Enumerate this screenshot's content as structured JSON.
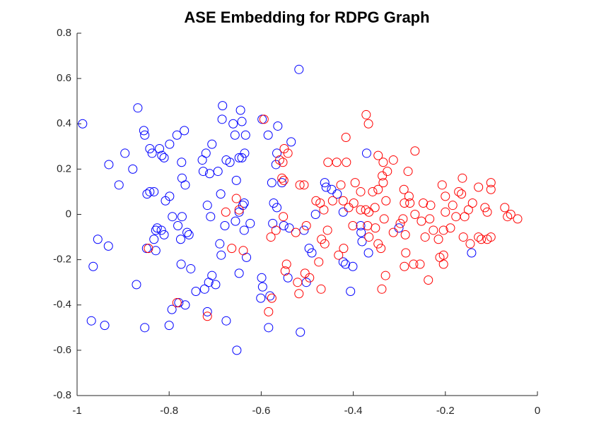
{
  "chart_data": {
    "type": "scatter",
    "title": "ASE Embedding for RDPG Graph",
    "xlim": [
      -1,
      0
    ],
    "ylim": [
      -0.8,
      0.8
    ],
    "xticks": [
      -1,
      -0.8,
      -0.6,
      -0.4,
      -0.2,
      0
    ],
    "yticks": [
      -0.8,
      -0.6,
      -0.4,
      -0.2,
      0,
      0.2,
      0.4,
      0.6,
      0.8
    ],
    "grid": false,
    "series": [
      {
        "color": "#0000ff",
        "x": [
          -0.988,
          -0.518,
          -0.868,
          -0.855,
          -0.853,
          -0.931,
          -0.896,
          -0.879,
          -0.909,
          -0.842,
          -0.837,
          -0.821,
          -0.816,
          -0.811,
          -0.799,
          -0.783,
          -0.767,
          -0.848,
          -0.842,
          -0.833,
          -0.808,
          -0.799,
          -0.773,
          -0.772,
          -0.765,
          -0.793,
          -0.781,
          -0.772,
          -0.761,
          -0.757,
          -0.826,
          -0.829,
          -0.817,
          -0.811,
          -0.833,
          -0.829,
          -0.849,
          -0.955,
          -0.932,
          -0.965,
          -0.774,
          -0.753,
          -0.775,
          -0.871,
          -0.969,
          -0.94,
          -0.853,
          -0.8,
          -0.794,
          -0.779,
          -0.765,
          -0.742,
          -0.723,
          -0.717,
          -0.714,
          -0.707,
          -0.699,
          -0.676,
          -0.653,
          -0.728,
          -0.72,
          -0.707,
          -0.726,
          -0.712,
          -0.694,
          -0.717,
          -0.71,
          -0.688,
          -0.684,
          -0.685,
          -0.676,
          -0.668,
          -0.661,
          -0.657,
          -0.645,
          -0.642,
          -0.634,
          -0.648,
          -0.642,
          -0.656,
          -0.636,
          -0.648,
          -0.637,
          -0.64,
          -0.637,
          -0.679,
          -0.69,
          -0.687,
          -0.654,
          -0.632,
          -0.648,
          -0.599,
          -0.597,
          -0.601,
          -0.581,
          -0.584,
          -0.624,
          -0.598,
          -0.585,
          -0.564,
          -0.568,
          -0.566,
          -0.577,
          -0.555,
          -0.573,
          -0.566,
          -0.575,
          -0.551,
          -0.539,
          -0.542,
          -0.535,
          -0.515,
          -0.502,
          -0.496,
          -0.49,
          -0.507,
          -0.482,
          -0.459,
          -0.462,
          -0.447,
          -0.435,
          -0.422,
          -0.422,
          -0.417,
          -0.401,
          -0.406,
          -0.371,
          -0.384,
          -0.383,
          -0.381,
          -0.367,
          -0.301,
          -0.143
        ],
        "y": [
          0.4,
          0.64,
          0.47,
          0.37,
          0.35,
          0.22,
          0.27,
          0.2,
          0.13,
          0.29,
          0.27,
          0.29,
          0.26,
          0.25,
          0.31,
          0.35,
          0.37,
          0.09,
          0.1,
          0.1,
          0.06,
          0.08,
          0.23,
          0.16,
          0.13,
          -0.01,
          -0.05,
          -0.01,
          -0.08,
          -0.09,
          -0.06,
          -0.07,
          -0.07,
          -0.09,
          -0.11,
          -0.16,
          -0.15,
          -0.11,
          -0.14,
          -0.23,
          -0.22,
          -0.24,
          -0.11,
          -0.31,
          -0.47,
          -0.49,
          -0.5,
          -0.49,
          -0.42,
          -0.39,
          -0.4,
          -0.34,
          -0.33,
          -0.43,
          -0.3,
          -0.27,
          -0.31,
          -0.47,
          -0.6,
          0.24,
          0.27,
          0.31,
          0.19,
          0.18,
          0.19,
          0.04,
          -0.01,
          0.09,
          0.48,
          0.42,
          0.24,
          0.23,
          0.4,
          0.35,
          0.46,
          0.41,
          0.35,
          0.25,
          0.25,
          -0.03,
          0.27,
          0.01,
          0.05,
          0.04,
          -0.07,
          -0.05,
          -0.13,
          -0.18,
          0.15,
          -0.19,
          -0.26,
          -0.28,
          -0.32,
          -0.37,
          -0.36,
          -0.5,
          -0.04,
          0.42,
          0.35,
          0.39,
          0.22,
          0.27,
          0.14,
          0.14,
          0.05,
          0.03,
          -0.04,
          -0.05,
          -0.06,
          -0.28,
          0.32,
          -0.52,
          -0.3,
          -0.15,
          -0.17,
          -0.07,
          0,
          0.12,
          0.14,
          0.11,
          0.09,
          0.01,
          -0.21,
          -0.22,
          -0.23,
          -0.34,
          0.27,
          -0.05,
          -0.08,
          -0.12,
          -0.17,
          -0.06,
          -0.17
        ]
      },
      {
        "color": "#ff0000",
        "x": [
          -0.594,
          -0.372,
          -0.367,
          -0.416,
          -0.55,
          -0.542,
          -0.56,
          -0.553,
          -0.455,
          -0.436,
          -0.415,
          -0.346,
          -0.335,
          -0.326,
          -0.313,
          -0.281,
          -0.266,
          -0.555,
          -0.551,
          -0.516,
          -0.507,
          -0.427,
          -0.396,
          -0.384,
          -0.358,
          -0.346,
          -0.335,
          -0.337,
          -0.29,
          -0.279,
          -0.289,
          -0.277,
          -0.248,
          -0.232,
          -0.234,
          -0.207,
          -0.2,
          -0.2,
          -0.171,
          -0.165,
          -0.163,
          -0.184,
          -0.128,
          -0.101,
          -0.101,
          -0.109,
          -0.141,
          -0.15,
          -0.114,
          -0.071,
          -0.065,
          -0.058,
          -0.043,
          -0.481,
          -0.472,
          -0.464,
          -0.445,
          -0.422,
          -0.399,
          -0.373,
          -0.384,
          -0.366,
          -0.353,
          -0.329,
          -0.333,
          -0.369,
          -0.401,
          -0.41,
          -0.352,
          -0.366,
          -0.346,
          -0.34,
          -0.313,
          -0.298,
          -0.292,
          -0.287,
          -0.266,
          -0.252,
          -0.244,
          -0.215,
          -0.226,
          -0.204,
          -0.189,
          -0.177,
          -0.158,
          -0.161,
          -0.146,
          -0.128,
          -0.109,
          -0.101,
          -0.122,
          -0.204,
          -0.212,
          -0.204,
          -0.237,
          -0.255,
          -0.269,
          -0.289,
          -0.286,
          -0.33,
          -0.338,
          -0.421,
          -0.432,
          -0.462,
          -0.475,
          -0.505,
          -0.495,
          -0.521,
          -0.518,
          -0.47,
          -0.525,
          -0.502,
          -0.456,
          -0.469,
          -0.552,
          -0.568,
          -0.579,
          -0.545,
          -0.548,
          -0.584,
          -0.577,
          -0.639,
          -0.664,
          -0.654,
          -0.783,
          -0.717,
          -0.845,
          -0.677,
          -0.648
        ],
        "y": [
          0.42,
          0.44,
          0.4,
          0.34,
          0.29,
          0.27,
          0.24,
          0.23,
          0.23,
          0.23,
          0.23,
          0.26,
          0.23,
          0.19,
          0.24,
          0.19,
          0.28,
          0.16,
          0.15,
          0.13,
          0.13,
          0.13,
          0.14,
          0.1,
          0.1,
          0.11,
          0.14,
          0.17,
          0.11,
          0.08,
          0.05,
          0.05,
          0.05,
          0.04,
          -0.02,
          0.13,
          0.08,
          0.01,
          0.1,
          0.09,
          0.16,
          0.04,
          0.12,
          0.14,
          0.11,
          0.01,
          0.05,
          0.02,
          0.03,
          0.03,
          -0.01,
          0,
          -0.02,
          0.06,
          0.05,
          0.02,
          0.06,
          0.06,
          0.05,
          0.02,
          0.02,
          0.01,
          0.03,
          0.06,
          -0.02,
          -0.05,
          -0.05,
          0.03,
          -0.06,
          -0.1,
          -0.13,
          -0.15,
          -0.08,
          -0.04,
          -0.02,
          -0.09,
          0,
          -0.03,
          -0.1,
          -0.11,
          -0.07,
          -0.07,
          -0.06,
          -0.01,
          -0.01,
          -0.1,
          -0.13,
          -0.1,
          -0.11,
          -0.1,
          -0.11,
          -0.18,
          -0.19,
          -0.22,
          -0.29,
          -0.22,
          -0.22,
          -0.23,
          -0.17,
          -0.27,
          -0.33,
          -0.15,
          -0.18,
          -0.13,
          -0.21,
          -0.26,
          -0.28,
          -0.3,
          -0.35,
          -0.33,
          -0.08,
          -0.05,
          -0.07,
          -0.11,
          -0.01,
          -0.07,
          -0.1,
          -0.22,
          -0.25,
          -0.43,
          -0.37,
          -0.16,
          -0.15,
          0.07,
          -0.39,
          -0.45,
          -0.15,
          0.01,
          0.02
        ]
      }
    ]
  }
}
